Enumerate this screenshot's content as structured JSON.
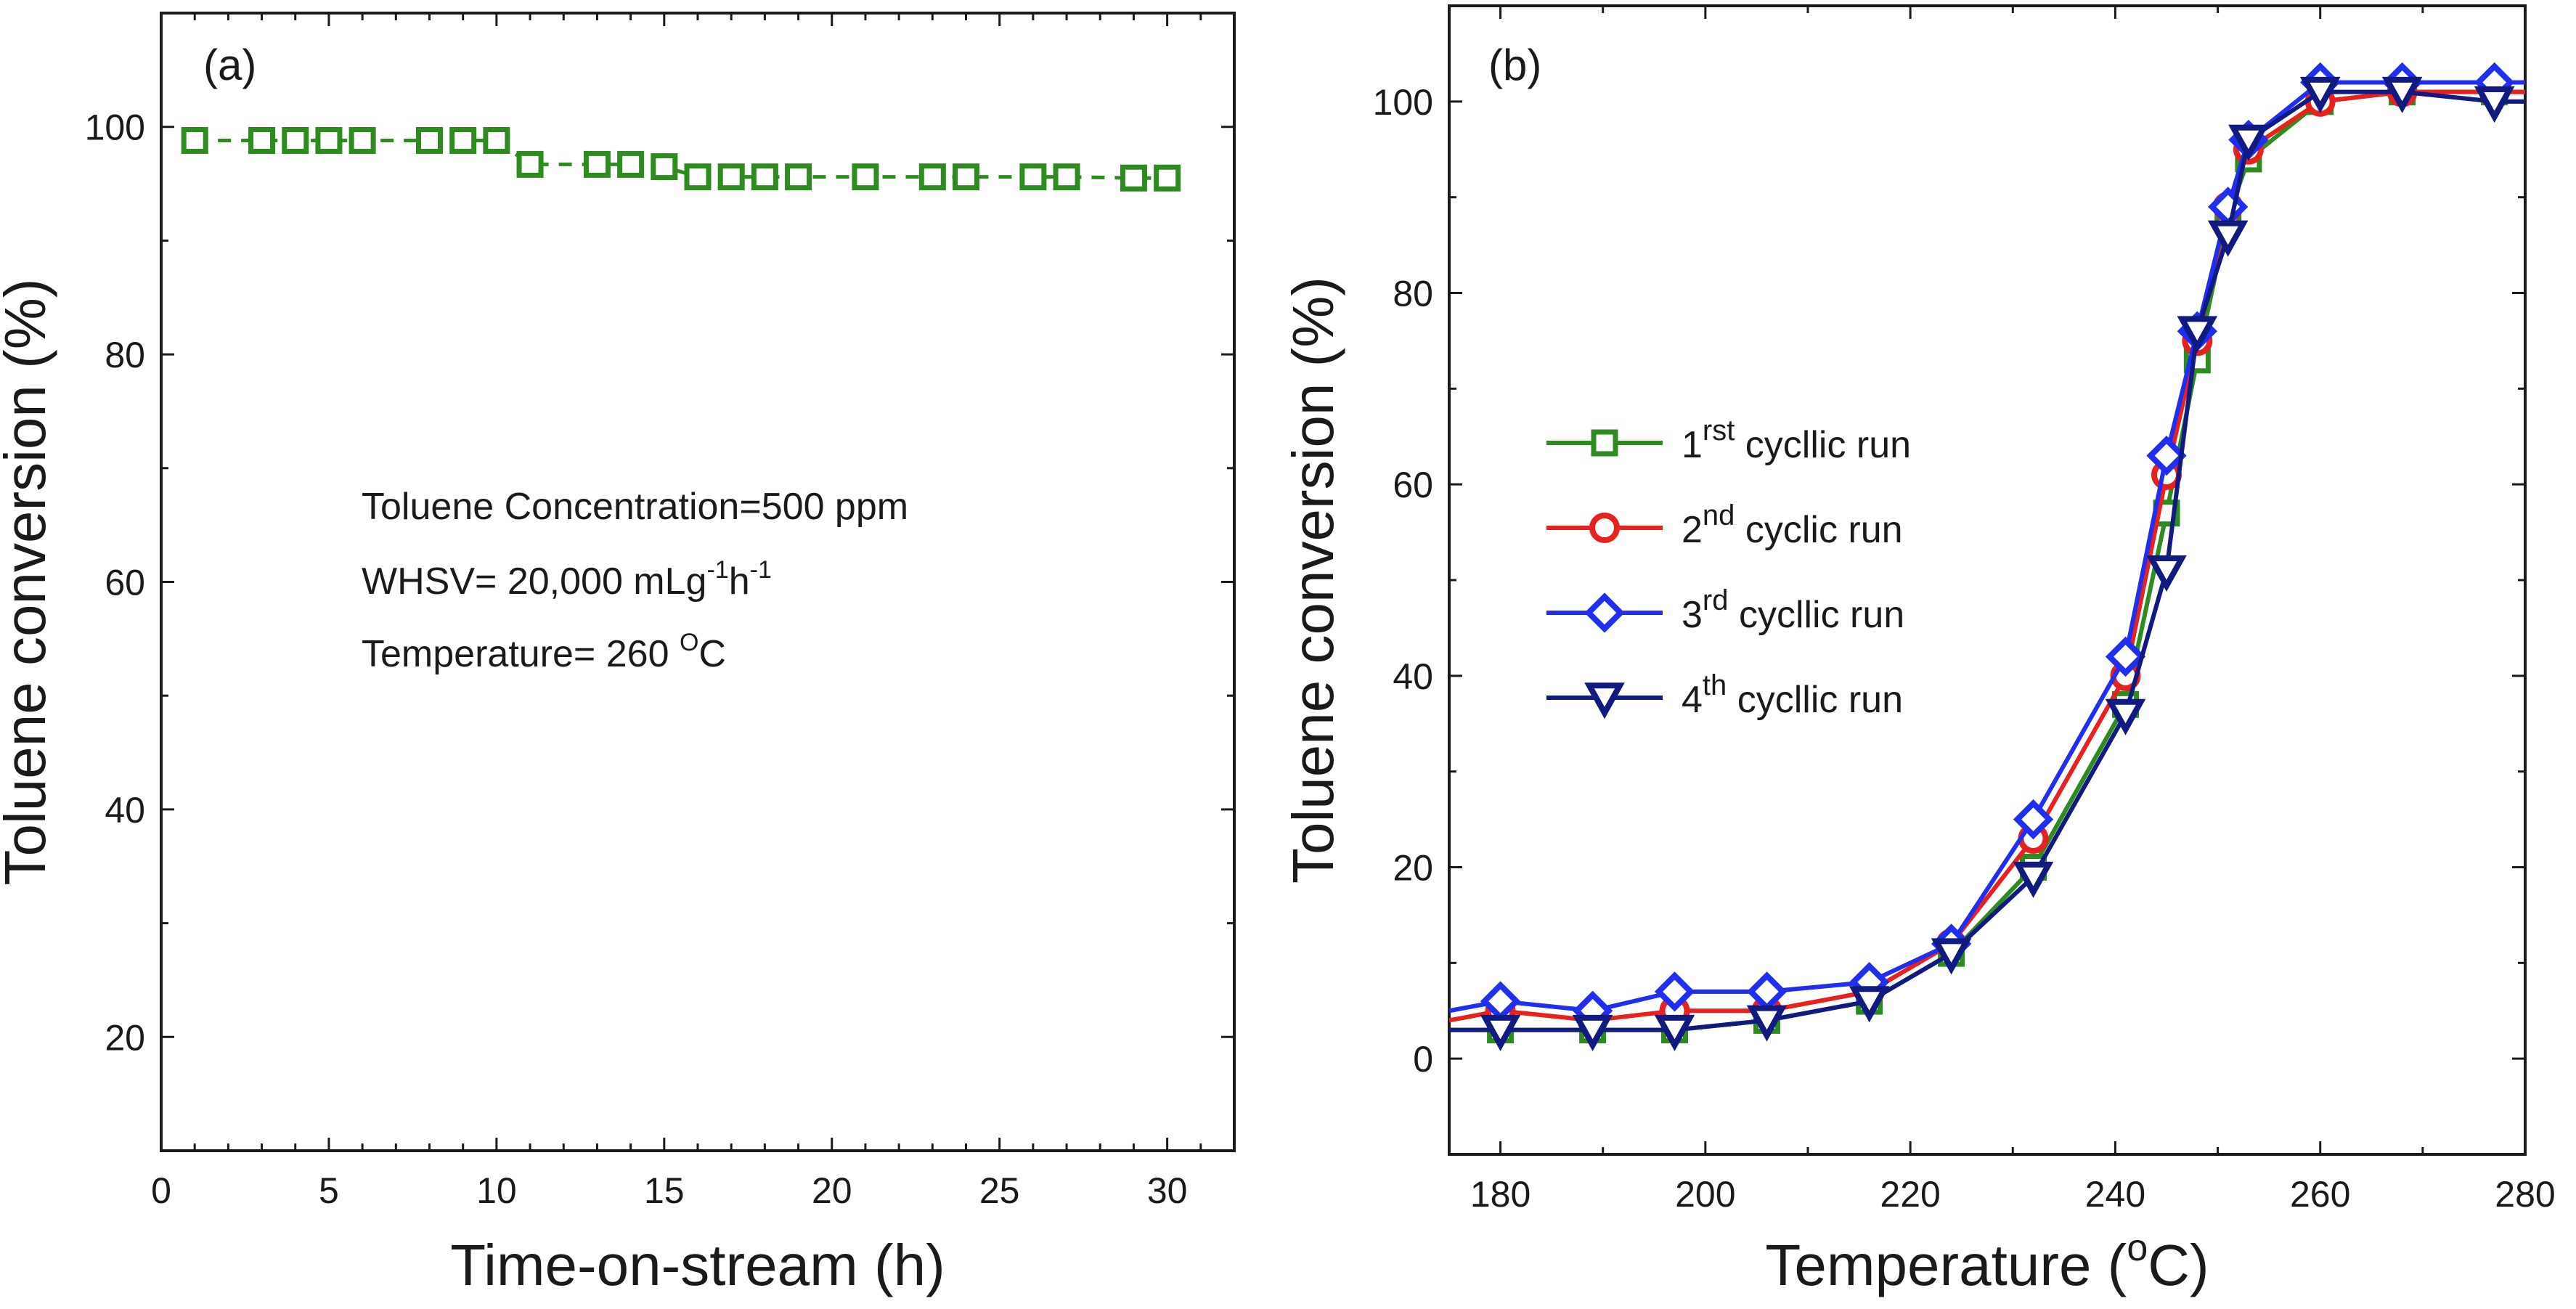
{
  "chart_data": [
    {
      "panel": "a",
      "type": "scatter",
      "label": "(a)",
      "xlabel": "Time-on-stream (h)",
      "ylabel": "Toluene conversion (%)",
      "xlim": [
        0,
        32
      ],
      "ylim": [
        10,
        110
      ],
      "xticks": [
        0,
        5,
        10,
        15,
        20,
        25,
        30
      ],
      "yticks": [
        20,
        40,
        60,
        80,
        100
      ],
      "color": "#2e8b1f",
      "series": [
        {
          "name": "Toluene conversion",
          "x": [
            1,
            3,
            4,
            5,
            6,
            8,
            9,
            10,
            11,
            13,
            14,
            15,
            16,
            17,
            18,
            19,
            21,
            23,
            24,
            26,
            27,
            29,
            30
          ],
          "y": [
            98.8,
            98.8,
            98.8,
            98.8,
            98.8,
            98.8,
            98.8,
            98.8,
            96.7,
            96.7,
            96.7,
            96.5,
            95.6,
            95.6,
            95.6,
            95.6,
            95.6,
            95.6,
            95.6,
            95.6,
            95.6,
            95.5,
            95.5
          ]
        }
      ],
      "annotations": [
        "Toluene Concentration=500 ppm",
        "WHSV= 20,000 mLg",
        "-1",
        "h",
        "-1",
        "Temperature= 260 ",
        "O",
        "C"
      ]
    },
    {
      "panel": "b",
      "type": "line",
      "label": "(b)",
      "xlabel": "Temperature (",
      "xlabel_sup": "o",
      "xlabel_end": "C)",
      "ylabel": "Toluene conversion (%)",
      "xlim": [
        175,
        280
      ],
      "ylim": [
        -10,
        110
      ],
      "xticks": [
        180,
        200,
        220,
        240,
        260,
        280
      ],
      "yticks": [
        0,
        20,
        40,
        60,
        80,
        100
      ],
      "legend_position": "center-left",
      "series": [
        {
          "name": "1st cyclic run",
          "legend_base": "1",
          "legend_sup": "rst",
          "legend_text": " cycllic run",
          "marker": "square",
          "color": "#2e8b1f",
          "x": [
            175,
            180,
            189,
            197,
            206,
            216,
            224,
            232,
            241,
            245,
            248,
            251,
            253,
            260,
            268,
            277,
            280
          ],
          "y": [
            3,
            3,
            3,
            3,
            4,
            6,
            11,
            20,
            37,
            57,
            73,
            88,
            94,
            100,
            101,
            101,
            101
          ]
        },
        {
          "name": "2nd cyclic run",
          "legend_base": "2",
          "legend_sup": "nd",
          "legend_text": " cyclic run",
          "marker": "circle",
          "color": "#e8201e",
          "x": [
            175,
            180,
            189,
            197,
            206,
            216,
            224,
            232,
            241,
            245,
            248,
            251,
            253,
            260,
            268,
            277,
            280
          ],
          "y": [
            4,
            5,
            4,
            5,
            5,
            7,
            12,
            23,
            40,
            61,
            75,
            89,
            95,
            100,
            101,
            101,
            101
          ]
        },
        {
          "name": "3rd cyclic run",
          "legend_base": "3",
          "legend_sup": "rd",
          "legend_text": " cycllic run",
          "marker": "diamond",
          "color": "#1f2ef0",
          "x": [
            175,
            180,
            189,
            197,
            206,
            216,
            224,
            232,
            241,
            245,
            248,
            251,
            253,
            260,
            268,
            277,
            280
          ],
          "y": [
            5,
            6,
            5,
            7,
            7,
            8,
            12,
            25,
            42,
            63,
            76,
            89,
            96,
            102,
            102,
            102,
            102
          ]
        },
        {
          "name": "4th cyclic run",
          "legend_base": "4",
          "legend_sup": "th",
          "legend_text": " cycllic run",
          "marker": "triangle-down",
          "color": "#101a80",
          "x": [
            175,
            180,
            189,
            197,
            206,
            216,
            224,
            232,
            241,
            245,
            248,
            251,
            253,
            260,
            268,
            277,
            280
          ],
          "y": [
            3,
            3,
            3,
            3,
            4,
            6,
            11,
            19,
            36,
            51,
            76,
            86,
            96,
            101,
            101,
            100,
            100
          ]
        }
      ]
    }
  ]
}
